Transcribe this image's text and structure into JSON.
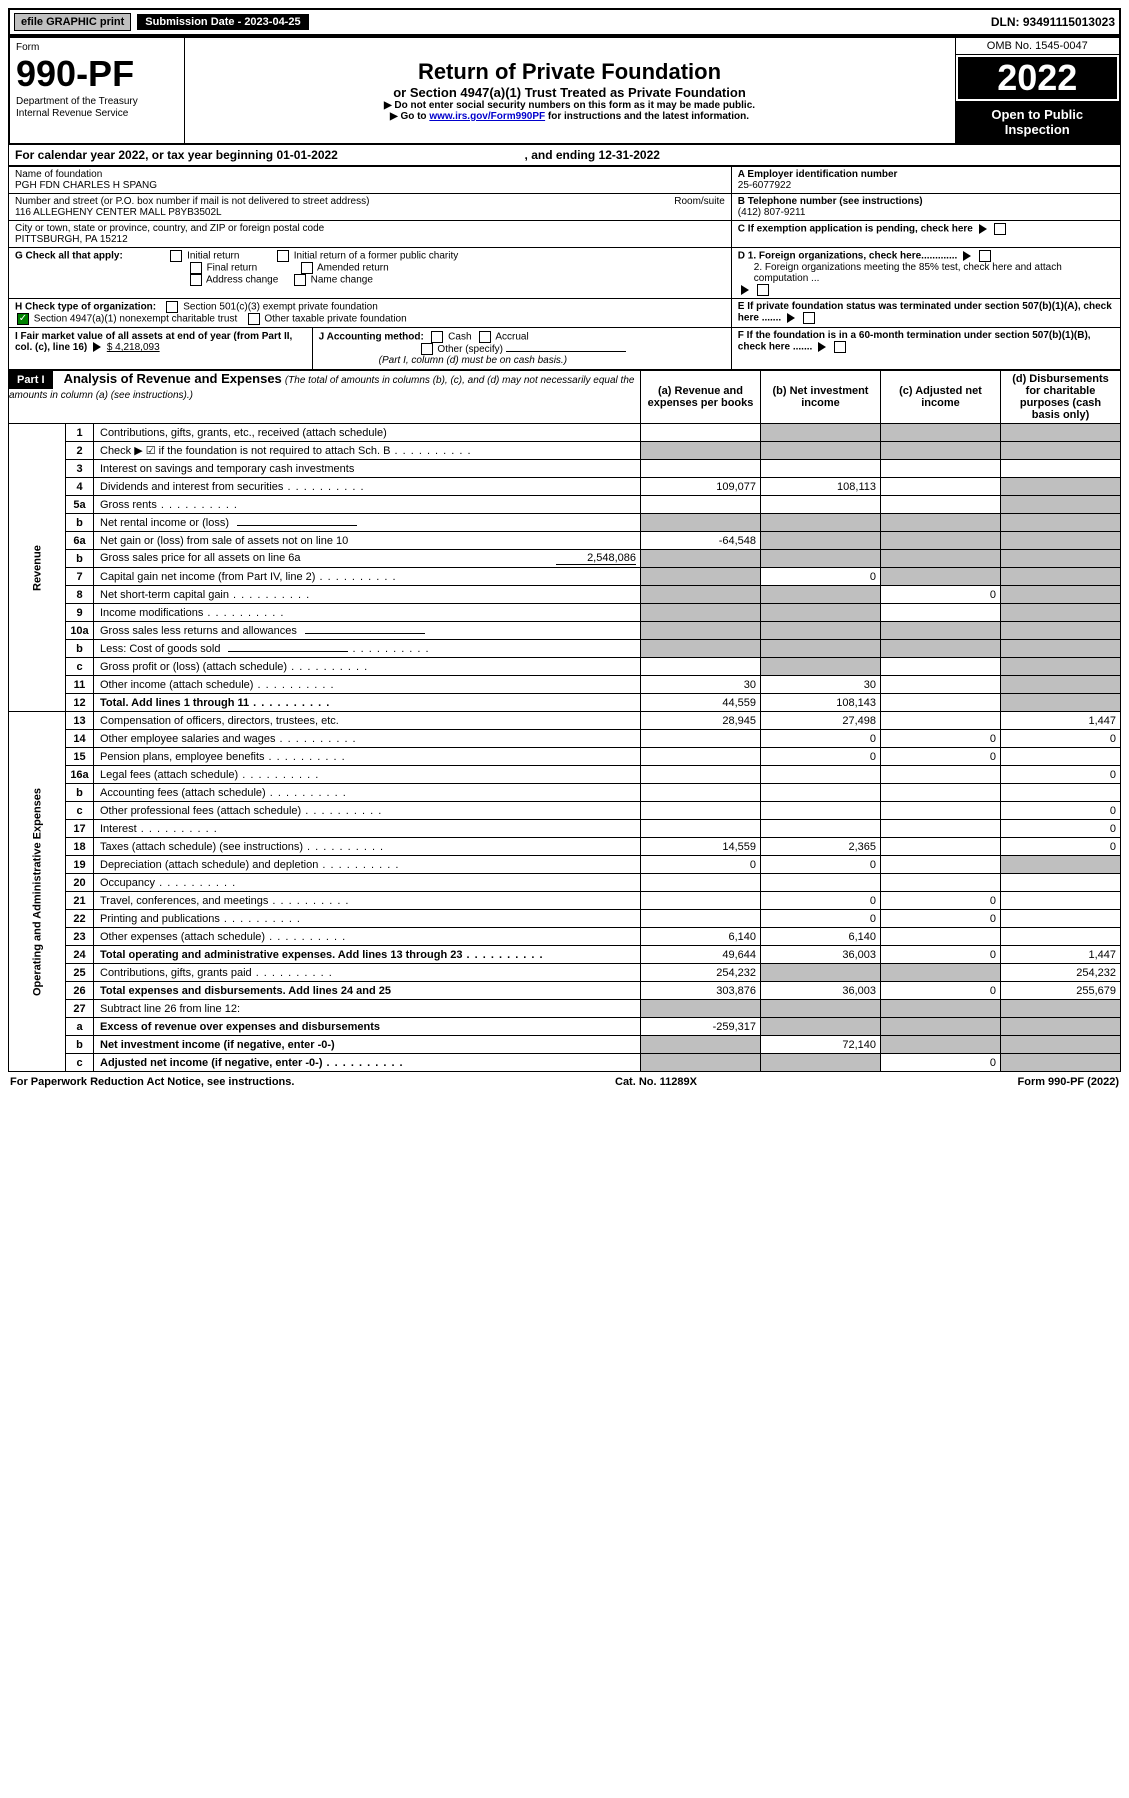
{
  "topbar": {
    "efile_label": "efile GRAPHIC print",
    "submission_label": "Submission Date - 2023-04-25",
    "dln": "DLN: 93491115013023"
  },
  "header": {
    "form_word": "Form",
    "form_number": "990-PF",
    "dept1": "Department of the Treasury",
    "dept2": "Internal Revenue Service",
    "title": "Return of Private Foundation",
    "subtitle": "or Section 4947(a)(1) Trust Treated as Private Foundation",
    "note1": "▶ Do not enter social security numbers on this form as it may be made public.",
    "note2_prefix": "▶ Go to ",
    "note2_link": "www.irs.gov/Form990PF",
    "note2_suffix": " for instructions and the latest information.",
    "omb": "OMB No. 1545-0047",
    "year": "2022",
    "open_public": "Open to Public Inspection"
  },
  "cal_year": {
    "text_prefix": "For calendar year 2022, or tax year beginning ",
    "begin": "01-01-2022",
    "mid": " , and ending ",
    "end": "12-31-2022"
  },
  "id": {
    "name_label": "Name of foundation",
    "name": "PGH FDN CHARLES H SPANG",
    "addr_label": "Number and street (or P.O. box number if mail is not delivered to street address)",
    "addr": "116 ALLEGHENY CENTER MALL P8YB3502L",
    "room_label": "Room/suite",
    "city_label": "City or town, state or province, country, and ZIP or foreign postal code",
    "city": "PITTSBURGH, PA  15212",
    "A_label": "A Employer identification number",
    "A_val": "25-6077922",
    "B_label": "B Telephone number (see instructions)",
    "B_val": "(412) 807-9211",
    "C_label": "C If exemption application is pending, check here",
    "D1": "D 1. Foreign organizations, check here.............",
    "D2": "2. Foreign organizations meeting the 85% test, check here and attach computation ...",
    "E": "E  If private foundation status was terminated under section 507(b)(1)(A), check here .......",
    "F": "F  If the foundation is in a 60-month termination under section 507(b)(1)(B), check here .......",
    "G_label": "G Check all that apply:",
    "G_opts": [
      "Initial return",
      "Final return",
      "Address change",
      "Initial return of a former public charity",
      "Amended return",
      "Name change"
    ],
    "H_label": "H Check type of organization:",
    "H1": "Section 501(c)(3) exempt private foundation",
    "H2": "Section 4947(a)(1) nonexempt charitable trust",
    "H3": "Other taxable private foundation",
    "I_label": "I Fair market value of all assets at end of year (from Part II, col. (c), line 16)",
    "I_val": "$  4,218,093",
    "J_label": "J Accounting method:",
    "J_opts": [
      "Cash",
      "Accrual"
    ],
    "J_other": "Other (specify)",
    "J_note": "(Part I, column (d) must be on cash basis.)"
  },
  "part1": {
    "part_label": "Part I",
    "title": "Analysis of Revenue and Expenses",
    "title_note": "(The total of amounts in columns (b), (c), and (d) may not necessarily equal the amounts in column (a) (see instructions).)",
    "col_a": "(a)  Revenue and expenses per books",
    "col_b": "(b)  Net investment income",
    "col_c": "(c)  Adjusted net income",
    "col_d": "(d)  Disbursements for charitable purposes (cash basis only)",
    "vert_rev": "Revenue",
    "vert_exp": "Operating and Administrative Expenses",
    "rows": [
      {
        "n": "1",
        "d": "Contributions, gifts, grants, etc., received (attach schedule)",
        "a": "",
        "b": "",
        "c": "",
        "dv": "",
        "a_sh": false,
        "b_sh": true,
        "c_sh": true,
        "d_sh": true
      },
      {
        "n": "2",
        "d": "Check ▶ ☑ if the foundation is not required to attach Sch. B",
        "a": "",
        "b": "",
        "c": "",
        "dv": "",
        "a_sh": true,
        "b_sh": true,
        "c_sh": true,
        "d_sh": true,
        "dots": true
      },
      {
        "n": "3",
        "d": "Interest on savings and temporary cash investments",
        "a": "",
        "b": "",
        "c": "",
        "dv": ""
      },
      {
        "n": "4",
        "d": "Dividends and interest from securities",
        "a": "109,077",
        "b": "108,113",
        "c": "",
        "dv": "",
        "dots": true,
        "d_sh": true
      },
      {
        "n": "5a",
        "d": "Gross rents",
        "a": "",
        "b": "",
        "c": "",
        "dv": "",
        "dots": true,
        "d_sh": true
      },
      {
        "n": "b",
        "d": "Net rental income or (loss)",
        "a": "",
        "b": "",
        "c": "",
        "dv": "",
        "a_sh": true,
        "b_sh": true,
        "c_sh": true,
        "d_sh": true,
        "inline": true
      },
      {
        "n": "6a",
        "d": "Net gain or (loss) from sale of assets not on line 10",
        "a": "-64,548",
        "b": "",
        "c": "",
        "dv": "",
        "b_sh": true,
        "c_sh": true,
        "d_sh": true
      },
      {
        "n": "b",
        "d": "Gross sales price for all assets on line 6a",
        "a": "",
        "b": "",
        "c": "",
        "dv": "",
        "a_sh": true,
        "b_sh": true,
        "c_sh": true,
        "d_sh": true,
        "inline_val": "2,548,086"
      },
      {
        "n": "7",
        "d": "Capital gain net income (from Part IV, line 2)",
        "a": "",
        "b": "0",
        "c": "",
        "dv": "",
        "a_sh": true,
        "c_sh": true,
        "d_sh": true,
        "dots": true
      },
      {
        "n": "8",
        "d": "Net short-term capital gain",
        "a": "",
        "b": "",
        "c": "0",
        "dv": "",
        "a_sh": true,
        "b_sh": true,
        "d_sh": true,
        "dots": true
      },
      {
        "n": "9",
        "d": "Income modifications",
        "a": "",
        "b": "",
        "c": "",
        "dv": "",
        "a_sh": true,
        "b_sh": true,
        "d_sh": true,
        "dots": true
      },
      {
        "n": "10a",
        "d": "Gross sales less returns and allowances",
        "a": "",
        "b": "",
        "c": "",
        "dv": "",
        "a_sh": true,
        "b_sh": true,
        "c_sh": true,
        "d_sh": true,
        "inline": true
      },
      {
        "n": "b",
        "d": "Less: Cost of goods sold",
        "a": "",
        "b": "",
        "c": "",
        "dv": "",
        "a_sh": true,
        "b_sh": true,
        "c_sh": true,
        "d_sh": true,
        "inline": true,
        "dots": true
      },
      {
        "n": "c",
        "d": "Gross profit or (loss) (attach schedule)",
        "a": "",
        "b": "",
        "c": "",
        "dv": "",
        "b_sh": true,
        "d_sh": true,
        "dots": true
      },
      {
        "n": "11",
        "d": "Other income (attach schedule)",
        "a": "30",
        "b": "30",
        "c": "",
        "dv": "",
        "d_sh": true,
        "dots": true
      },
      {
        "n": "12",
        "d": "Total. Add lines 1 through 11",
        "a": "44,559",
        "b": "108,143",
        "c": "",
        "dv": "",
        "d_sh": true,
        "bold": true,
        "dots": true
      },
      {
        "n": "13",
        "d": "Compensation of officers, directors, trustees, etc.",
        "a": "28,945",
        "b": "27,498",
        "c": "",
        "dv": "1,447"
      },
      {
        "n": "14",
        "d": "Other employee salaries and wages",
        "a": "",
        "b": "0",
        "c": "0",
        "dv": "0",
        "dots": true
      },
      {
        "n": "15",
        "d": "Pension plans, employee benefits",
        "a": "",
        "b": "0",
        "c": "0",
        "dv": "",
        "dots": true
      },
      {
        "n": "16a",
        "d": "Legal fees (attach schedule)",
        "a": "",
        "b": "",
        "c": "",
        "dv": "0",
        "dots": true
      },
      {
        "n": "b",
        "d": "Accounting fees (attach schedule)",
        "a": "",
        "b": "",
        "c": "",
        "dv": "",
        "dots": true
      },
      {
        "n": "c",
        "d": "Other professional fees (attach schedule)",
        "a": "",
        "b": "",
        "c": "",
        "dv": "0",
        "dots": true
      },
      {
        "n": "17",
        "d": "Interest",
        "a": "",
        "b": "",
        "c": "",
        "dv": "0",
        "dots": true
      },
      {
        "n": "18",
        "d": "Taxes (attach schedule) (see instructions)",
        "a": "14,559",
        "b": "2,365",
        "c": "",
        "dv": "0",
        "dots": true
      },
      {
        "n": "19",
        "d": "Depreciation (attach schedule) and depletion",
        "a": "0",
        "b": "0",
        "c": "",
        "dv": "",
        "d_sh": true,
        "dots": true
      },
      {
        "n": "20",
        "d": "Occupancy",
        "a": "",
        "b": "",
        "c": "",
        "dv": "",
        "dots": true
      },
      {
        "n": "21",
        "d": "Travel, conferences, and meetings",
        "a": "",
        "b": "0",
        "c": "0",
        "dv": "",
        "dots": true
      },
      {
        "n": "22",
        "d": "Printing and publications",
        "a": "",
        "b": "0",
        "c": "0",
        "dv": "",
        "dots": true
      },
      {
        "n": "23",
        "d": "Other expenses (attach schedule)",
        "a": "6,140",
        "b": "6,140",
        "c": "",
        "dv": "",
        "dots": true
      },
      {
        "n": "24",
        "d": "Total operating and administrative expenses. Add lines 13 through 23",
        "a": "49,644",
        "b": "36,003",
        "c": "0",
        "dv": "1,447",
        "bold": true,
        "dots": true
      },
      {
        "n": "25",
        "d": "Contributions, gifts, grants paid",
        "a": "254,232",
        "b": "",
        "c": "",
        "dv": "254,232",
        "b_sh": true,
        "c_sh": true,
        "dots": true
      },
      {
        "n": "26",
        "d": "Total expenses and disbursements. Add lines 24 and 25",
        "a": "303,876",
        "b": "36,003",
        "c": "0",
        "dv": "255,679",
        "bold": true
      },
      {
        "n": "27",
        "d": "Subtract line 26 from line 12:",
        "a": "",
        "b": "",
        "c": "",
        "dv": "",
        "a_sh": true,
        "b_sh": true,
        "c_sh": true,
        "d_sh": true
      },
      {
        "n": "a",
        "d": "Excess of revenue over expenses and disbursements",
        "a": "-259,317",
        "b": "",
        "c": "",
        "dv": "",
        "b_sh": true,
        "c_sh": true,
        "d_sh": true,
        "bold": true
      },
      {
        "n": "b",
        "d": "Net investment income (if negative, enter -0-)",
        "a": "",
        "b": "72,140",
        "c": "",
        "dv": "",
        "a_sh": true,
        "c_sh": true,
        "d_sh": true,
        "bold": true
      },
      {
        "n": "c",
        "d": "Adjusted net income (if negative, enter -0-)",
        "a": "",
        "b": "",
        "c": "0",
        "dv": "",
        "a_sh": true,
        "b_sh": true,
        "d_sh": true,
        "bold": true,
        "dots": true
      }
    ]
  },
  "footer": {
    "left": "For Paperwork Reduction Act Notice, see instructions.",
    "mid": "Cat. No. 11289X",
    "right": "Form 990-PF (2022)"
  }
}
